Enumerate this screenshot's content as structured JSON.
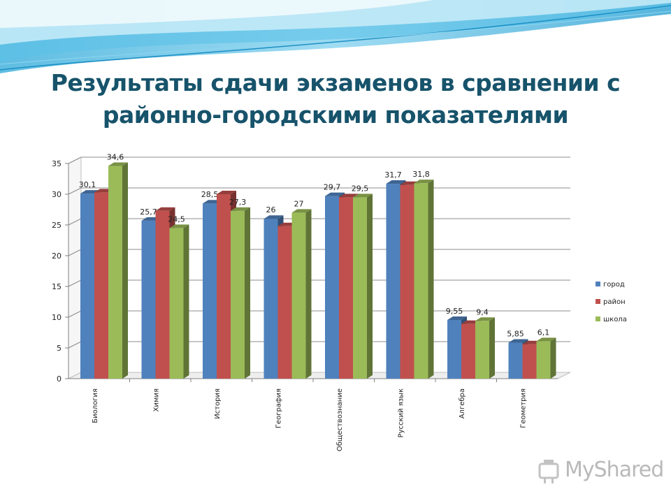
{
  "slide": {
    "title_line1": "Результаты сдачи экзаменов в сравнении с",
    "title_line2": "районно-городскими показателями"
  },
  "watermark": {
    "text": "MyShared"
  },
  "chart_data": {
    "type": "bar",
    "title": "",
    "xlabel": "",
    "ylabel": "",
    "ylim": [
      0,
      35
    ],
    "y_ticks": [
      0,
      5,
      10,
      15,
      20,
      25,
      30,
      35
    ],
    "grid": true,
    "legend_position": "right",
    "categories": [
      "Биология",
      "Химия",
      "История",
      "География",
      "Обществознание",
      "Русский язык",
      "Алгебра",
      "Геометрия"
    ],
    "series": [
      {
        "name": "город",
        "color": "#4f81bd",
        "values": [
          30.1,
          25.7,
          28.5,
          26,
          29.7,
          31.7,
          9.55,
          5.85
        ],
        "labels": [
          "30,1",
          "25,7",
          "28,5",
          "26",
          "29,7",
          "31,7",
          "9,55",
          "5,85"
        ]
      },
      {
        "name": "район",
        "color": "#c0504d",
        "values": [
          30.3,
          27.3,
          30,
          24.8,
          29.5,
          31.5,
          8.9,
          5.6
        ],
        "labels": [
          "",
          "",
          "",
          "",
          "",
          "",
          "",
          ""
        ]
      },
      {
        "name": "школа",
        "color": "#9bbb59",
        "values": [
          34.6,
          24.5,
          27.3,
          27,
          29.5,
          31.8,
          9.4,
          6.1
        ],
        "labels": [
          "34,6",
          "24,5",
          "27,3",
          "27",
          "29,5",
          "31,8",
          "9,4",
          "6,1"
        ]
      }
    ]
  }
}
